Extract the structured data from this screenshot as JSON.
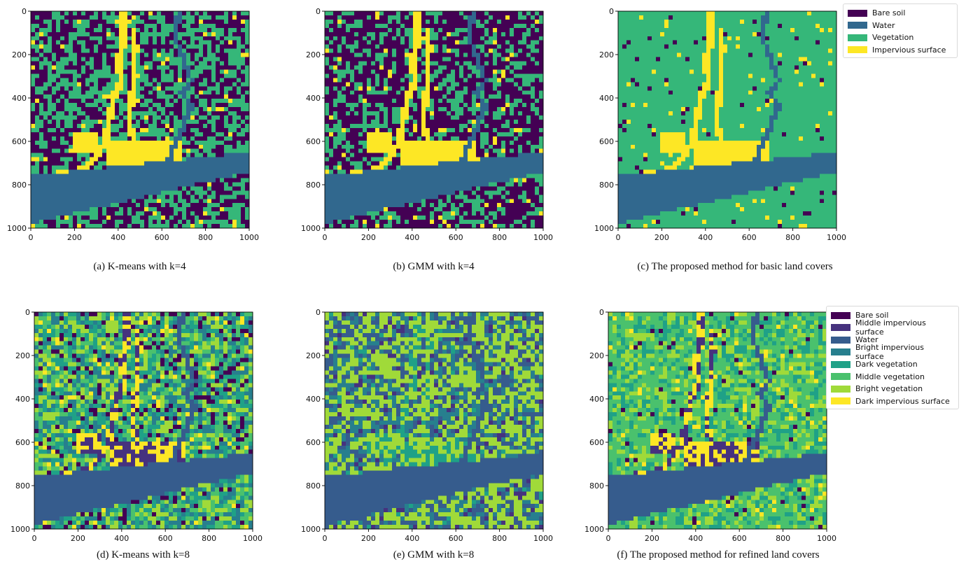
{
  "legends": {
    "basic": [
      {
        "label": "Bare soil",
        "color": "#440154"
      },
      {
        "label": "Water",
        "color": "#31688e"
      },
      {
        "label": "Vegetation",
        "color": "#35b779"
      },
      {
        "label": "Impervious surface",
        "color": "#fde725"
      }
    ],
    "refined": [
      {
        "label": "Bare soil",
        "color": "#440154"
      },
      {
        "label": "Middle impervious surface",
        "color": "#46327e"
      },
      {
        "label": "Water",
        "color": "#365c8d"
      },
      {
        "label": "Bright impervious surface",
        "color": "#277f8e"
      },
      {
        "label": "Dark vegetation",
        "color": "#1fa187"
      },
      {
        "label": "Middle vegetation",
        "color": "#4ac16d"
      },
      {
        "label": "Bright vegetation",
        "color": "#a0da39"
      },
      {
        "label": "Dark impervious surface",
        "color": "#fde725"
      }
    ]
  },
  "chart_data": [
    {
      "type": "heatmap",
      "caption": "(a) K-means with k=4",
      "xlim": [
        0,
        1000
      ],
      "ylim": [
        1000,
        0
      ],
      "xticks": [
        0,
        200,
        400,
        600,
        800,
        1000
      ],
      "yticks": [
        0,
        200,
        400,
        600,
        800,
        1000
      ],
      "palette": [
        "#440154",
        "#31688e",
        "#35b779",
        "#fde725"
      ],
      "class_index": {
        "soil": 0,
        "water": 1,
        "veg": [
          2
        ],
        "imp": [
          3
        ]
      },
      "background_mix": [
        0.48,
        0.52
      ]
    },
    {
      "type": "heatmap",
      "caption": "(b) GMM with k=4",
      "xlim": [
        0,
        1000
      ],
      "ylim": [
        1000,
        0
      ],
      "xticks": [
        0,
        200,
        400,
        600,
        800,
        1000
      ],
      "yticks": [
        0,
        200,
        400,
        600,
        800,
        1000
      ],
      "palette": [
        "#440154",
        "#31688e",
        "#35b779",
        "#fde725"
      ],
      "class_index": {
        "soil": 0,
        "water": 1,
        "veg": [
          2
        ],
        "imp": [
          3
        ]
      },
      "background_mix": [
        0.62,
        0.38
      ]
    },
    {
      "type": "heatmap",
      "caption": "(c) The proposed method for basic land covers",
      "xlim": [
        0,
        1000
      ],
      "ylim": [
        1000,
        0
      ],
      "xticks": [
        0,
        200,
        400,
        600,
        800,
        1000
      ],
      "yticks": [
        0,
        200,
        400,
        600,
        800,
        1000
      ],
      "palette": [
        "#440154",
        "#31688e",
        "#35b779",
        "#fde725"
      ],
      "class_index": {
        "soil": 0,
        "water": 1,
        "veg": [
          2
        ],
        "imp": [
          3
        ]
      },
      "background_mix": [
        0.03,
        0.97
      ]
    },
    {
      "type": "heatmap",
      "caption": "(d) K-means with k=8",
      "xlim": [
        0,
        1000
      ],
      "ylim": [
        1000,
        0
      ],
      "xticks": [
        0,
        200,
        400,
        600,
        800,
        1000
      ],
      "yticks": [
        0,
        200,
        400,
        600,
        800,
        1000
      ],
      "palette": [
        "#440154",
        "#46327e",
        "#365c8d",
        "#277f8e",
        "#1fa187",
        "#4ac16d",
        "#a0da39",
        "#fde725"
      ],
      "class_index": {
        "soil": 0,
        "water": 2,
        "veg": [
          3,
          4,
          5,
          6
        ],
        "imp": [
          7,
          1
        ]
      },
      "background_mix": [
        0.12,
        0.88
      ]
    },
    {
      "type": "heatmap",
      "caption": "(e) GMM with k=8",
      "xlim": [
        0,
        1000
      ],
      "ylim": [
        1000,
        0
      ],
      "xticks": [
        0,
        200,
        400,
        600,
        800,
        1000
      ],
      "yticks": [
        0,
        200,
        400,
        600,
        800,
        1000
      ],
      "palette": [
        "#440154",
        "#46327e",
        "#365c8d",
        "#277f8e",
        "#1fa187",
        "#4ac16d",
        "#a0da39",
        "#fde725"
      ],
      "class_index": {
        "soil": 1,
        "water": 2,
        "veg": [
          2,
          3,
          6,
          6
        ],
        "imp": [
          4,
          6
        ]
      },
      "background_mix": [
        0.06,
        0.94
      ]
    },
    {
      "type": "heatmap",
      "caption": "(f) The proposed method for refined land covers",
      "xlim": [
        0,
        1000
      ],
      "ylim": [
        1000,
        0
      ],
      "xticks": [
        0,
        200,
        400,
        600,
        800,
        1000
      ],
      "yticks": [
        0,
        200,
        400,
        600,
        800,
        1000
      ],
      "palette": [
        "#440154",
        "#46327e",
        "#365c8d",
        "#277f8e",
        "#1fa187",
        "#4ac16d",
        "#a0da39",
        "#fde725"
      ],
      "class_index": {
        "soil": 0,
        "water": 2,
        "veg": [
          4,
          5,
          6,
          5
        ],
        "imp": [
          7,
          1
        ]
      },
      "background_mix": [
        0.03,
        0.97
      ]
    }
  ]
}
